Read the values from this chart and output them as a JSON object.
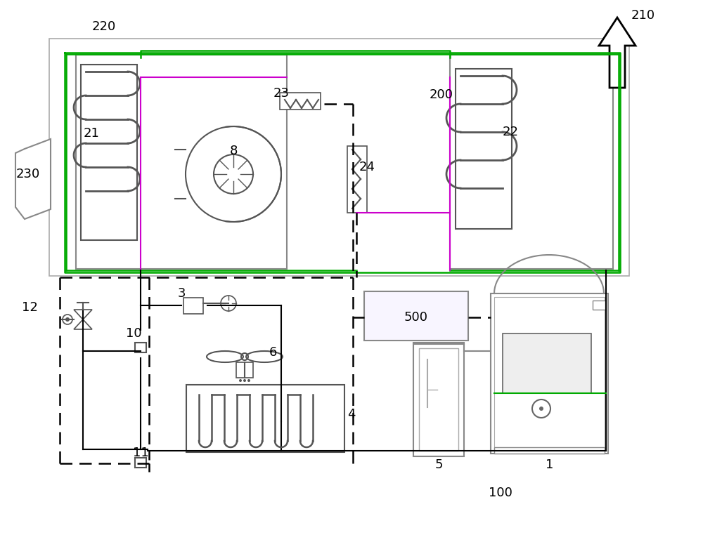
{
  "bg": "#ffffff",
  "lc": "#000000",
  "gray": "#888888",
  "lgray": "#aaaaaa",
  "green": "#00aa00",
  "purple": "#cc00cc",
  "dark": "#555555",
  "figsize": [
    10.0,
    7.62
  ],
  "dpi": 100
}
